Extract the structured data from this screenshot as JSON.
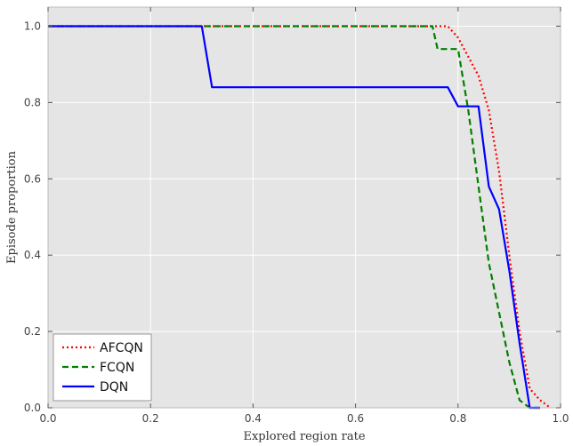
{
  "chart_data": {
    "type": "line",
    "xlabel": "Explored region rate",
    "ylabel": "Episode proportion",
    "xlim": [
      0.0,
      1.0
    ],
    "ylim": [
      0.0,
      1.05
    ],
    "xticks": [
      "0.0",
      "0.2",
      "0.4",
      "0.6",
      "0.8",
      "1.0"
    ],
    "yticks": [
      "0.0",
      "0.2",
      "0.4",
      "0.6",
      "0.8",
      "1.0"
    ],
    "grid": true,
    "legend_position": "bottom-left",
    "series": [
      {
        "name": "AFCQN",
        "color": "#ff0000",
        "style": "dotted",
        "x": [
          0.0,
          0.78,
          0.8,
          0.82,
          0.84,
          0.86,
          0.88,
          0.9,
          0.92,
          0.94,
          0.96,
          0.98
        ],
        "y": [
          1.0,
          1.0,
          0.97,
          0.92,
          0.87,
          0.78,
          0.62,
          0.4,
          0.2,
          0.05,
          0.02,
          0.0
        ]
      },
      {
        "name": "FCQN",
        "color": "#008000",
        "style": "dashed",
        "x": [
          0.0,
          0.75,
          0.76,
          0.8,
          0.82,
          0.84,
          0.86,
          0.88,
          0.9,
          0.92,
          0.94,
          0.96
        ],
        "y": [
          1.0,
          1.0,
          0.94,
          0.94,
          0.78,
          0.58,
          0.38,
          0.25,
          0.12,
          0.02,
          0.0,
          0.0
        ]
      },
      {
        "name": "DQN",
        "color": "#0000ff",
        "style": "solid",
        "x": [
          0.0,
          0.3,
          0.32,
          0.78,
          0.8,
          0.84,
          0.86,
          0.88,
          0.9,
          0.92,
          0.94,
          0.96
        ],
        "y": [
          1.0,
          1.0,
          0.84,
          0.84,
          0.79,
          0.79,
          0.58,
          0.52,
          0.36,
          0.17,
          0.0,
          0.0
        ]
      }
    ]
  }
}
